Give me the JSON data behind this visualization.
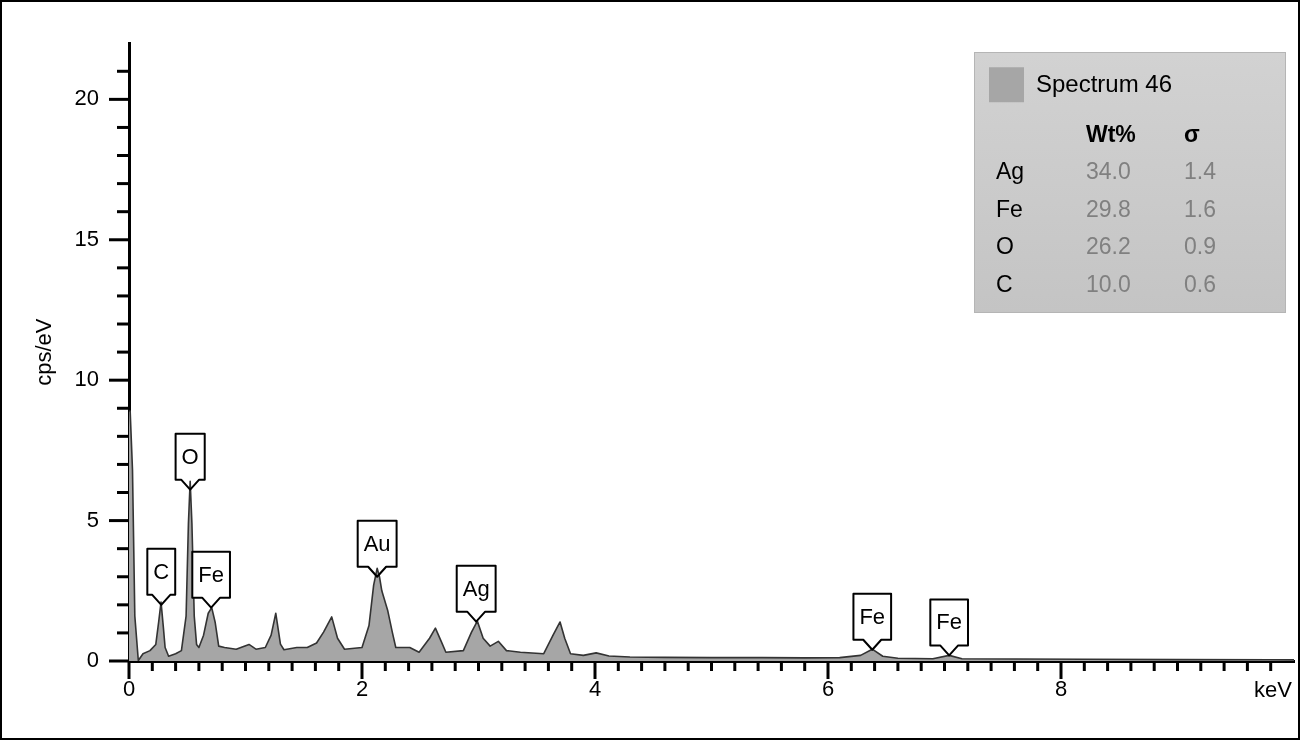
{
  "chart_data": {
    "type": "area",
    "ylabel": "cps/eV",
    "xlabel": "keV",
    "xlim": [
      0,
      10
    ],
    "ylim": [
      0,
      22
    ],
    "xticks": [
      0,
      {
        "value": 0.2,
        "label": null
      },
      {
        "value": 0.4,
        "label": null
      },
      {
        "value": 0.6,
        "label": null
      },
      {
        "value": 0.8,
        "label": null
      },
      {
        "value": 1,
        "label": null
      },
      {
        "value": 1.2,
        "label": null
      },
      {
        "value": 1.4,
        "label": null
      },
      {
        "value": 1.6,
        "label": null
      },
      {
        "value": 1.8,
        "label": null
      },
      2,
      {
        "value": 2.2,
        "label": null
      },
      {
        "value": 2.4,
        "label": null
      },
      {
        "value": 2.6,
        "label": null
      },
      {
        "value": 2.8,
        "label": null
      },
      {
        "value": 3,
        "label": null
      },
      {
        "value": 3.2,
        "label": null
      },
      {
        "value": 3.4,
        "label": null
      },
      {
        "value": 3.6,
        "label": null
      },
      {
        "value": 3.8,
        "label": null
      },
      4,
      {
        "value": 4.2,
        "label": null
      },
      {
        "value": 4.4,
        "label": null
      },
      {
        "value": 4.6,
        "label": null
      },
      {
        "value": 4.8,
        "label": null
      },
      {
        "value": 5,
        "label": null
      },
      {
        "value": 5.2,
        "label": null
      },
      {
        "value": 5.4,
        "label": null
      },
      {
        "value": 5.6,
        "label": null
      },
      {
        "value": 5.8,
        "label": null
      },
      6,
      {
        "value": 6.2,
        "label": null
      },
      {
        "value": 6.4,
        "label": null
      },
      {
        "value": 6.6,
        "label": null
      },
      {
        "value": 6.8,
        "label": null
      },
      {
        "value": 7,
        "label": null
      },
      {
        "value": 7.2,
        "label": null
      },
      {
        "value": 7.4,
        "label": null
      },
      {
        "value": 7.6,
        "label": null
      },
      {
        "value": 7.8,
        "label": null
      },
      8,
      {
        "value": 8.2,
        "label": null
      },
      {
        "value": 8.4,
        "label": null
      },
      {
        "value": 8.6,
        "label": null
      },
      {
        "value": 8.8,
        "label": null
      },
      {
        "value": 9,
        "label": null
      },
      {
        "value": 9.2,
        "label": null
      },
      {
        "value": 9.4,
        "label": null
      },
      {
        "value": 9.6,
        "label": null
      },
      {
        "value": 9.8,
        "label": null
      }
    ],
    "yticks": [
      0,
      {
        "value": 1,
        "label": null
      },
      {
        "value": 2,
        "label": null
      },
      {
        "value": 3,
        "label": null
      },
      {
        "value": 4,
        "label": null
      },
      5,
      {
        "value": 6,
        "label": null
      },
      {
        "value": 7,
        "label": null
      },
      {
        "value": 8,
        "label": null
      },
      {
        "value": 9,
        "label": null
      },
      10,
      {
        "value": 11,
        "label": null
      },
      {
        "value": 12,
        "label": null
      },
      {
        "value": 13,
        "label": null
      },
      {
        "value": 14,
        "label": null
      },
      15,
      {
        "value": 16,
        "label": null
      },
      {
        "value": 17,
        "label": null
      },
      {
        "value": 18,
        "label": null
      },
      {
        "value": 19,
        "label": null
      },
      20,
      {
        "value": 21,
        "label": null
      }
    ],
    "legend": "top right",
    "x": [
      0,
      0.01,
      0.03,
      0.05,
      0.08,
      0.12,
      0.18,
      0.23,
      0.255,
      0.275,
      0.295,
      0.31,
      0.34,
      0.4,
      0.45,
      0.49,
      0.51,
      0.525,
      0.54,
      0.56,
      0.58,
      0.6,
      0.64,
      0.68,
      0.71,
      0.74,
      0.77,
      0.82,
      0.92,
      1.03,
      1.09,
      1.17,
      1.22,
      1.26,
      1.3,
      1.33,
      1.44,
      1.53,
      1.61,
      1.67,
      1.74,
      1.79,
      1.85,
      2.0,
      2.06,
      2.1,
      2.13,
      2.15,
      2.17,
      2.22,
      2.26,
      2.29,
      2.41,
      2.49,
      2.58,
      2.63,
      2.68,
      2.72,
      2.87,
      2.94,
      2.99,
      3.04,
      3.1,
      3.17,
      3.24,
      3.36,
      3.56,
      3.64,
      3.7,
      3.74,
      3.79,
      3.9,
      4.01,
      4.12,
      4.3,
      4.6,
      5.0,
      5.4,
      5.8,
      6.1,
      6.28,
      6.38,
      6.47,
      6.6,
      6.9,
      7.04,
      7.15,
      7.6,
      8.2,
      9.0,
      10.0
    ],
    "series": [
      {
        "name": "Spectrum 46",
        "color": "#a6a6a6",
        "values": [
          8.9,
          8.9,
          6.8,
          1.6,
          0.02,
          0.26,
          0.37,
          0.59,
          1.4,
          2.1,
          1.2,
          0.48,
          0.17,
          0.26,
          0.37,
          1.6,
          4.9,
          6.4,
          4.9,
          1.6,
          0.59,
          0.48,
          0.92,
          1.7,
          1.9,
          1.37,
          0.53,
          0.48,
          0.42,
          0.59,
          0.42,
          0.48,
          0.92,
          1.7,
          0.6,
          0.4,
          0.48,
          0.48,
          0.64,
          1.03,
          1.57,
          0.81,
          0.42,
          0.48,
          1.26,
          2.7,
          3.3,
          3.0,
          2.5,
          1.81,
          1.03,
          0.48,
          0.48,
          0.31,
          0.81,
          1.17,
          0.7,
          0.31,
          0.37,
          1.03,
          1.42,
          0.81,
          0.53,
          0.7,
          0.37,
          0.31,
          0.26,
          0.92,
          1.39,
          0.81,
          0.26,
          0.2,
          0.29,
          0.18,
          0.14,
          0.13,
          0.12,
          0.12,
          0.11,
          0.12,
          0.2,
          0.42,
          0.17,
          0.1,
          0.08,
          0.2,
          0.08,
          0.07,
          0.06,
          0.05,
          0.04
        ]
      }
    ],
    "annotations": [
      {
        "text": "C",
        "x": 0.277,
        "y": 2.0
      },
      {
        "text": "O",
        "x": 0.525,
        "y": 6.1
      },
      {
        "text": "Fe",
        "x": 0.705,
        "y": 1.9
      },
      {
        "text": "Au",
        "x": 2.13,
        "y": 3.0
      },
      {
        "text": "Ag",
        "x": 2.98,
        "y": 1.4
      },
      {
        "text": "Fe",
        "x": 6.38,
        "y": 0.4
      },
      {
        "text": "Fe",
        "x": 7.04,
        "y": 0.2
      },
      "Wt%",
      "σ",
      "Ag",
      "34.0",
      "1.4",
      "Fe",
      "29.8",
      "1.6",
      "O",
      "26.2",
      "0.9",
      "C",
      "10.0",
      "0.6"
    ]
  }
}
